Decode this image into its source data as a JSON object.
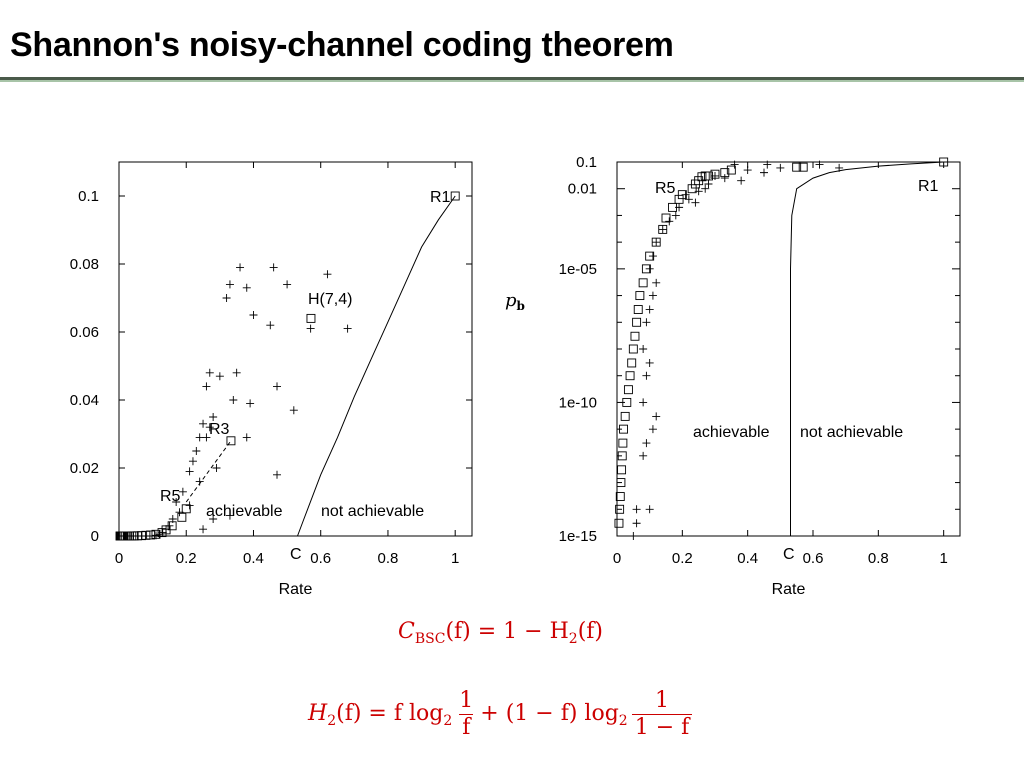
{
  "slide": {
    "title": "Shannon's noisy-channel coding theorem"
  },
  "equations": {
    "bsc_lhs_symbol": "C",
    "bsc_lhs_sub": "BSC",
    "bsc_rhs": "(f) = 1 − H",
    "bsc_rhs_sub": "2",
    "bsc_rhs_tail": "(f)",
    "h2_lhs": "H",
    "h2_lhs_sub": "2",
    "h2_mid1": "(f) = f log",
    "h2_mid1_sub": "2",
    "h2_frac1_num": "1",
    "h2_frac1_den": "f",
    "h2_mid2": "+ (1 − f) log",
    "h2_mid2_sub": "2",
    "h2_frac2_num": "1",
    "h2_frac2_den": "1 − f"
  },
  "colors": {
    "equation": "#cc0000",
    "plot_ink": "#000000",
    "title_rule_dark": "#4a5a4a",
    "title_rule_light": "#a8c4a8"
  },
  "chart_data": [
    {
      "type": "scatter",
      "title": "",
      "xlabel": "Rate",
      "ylabel": "",
      "xlim": [
        0,
        1.05
      ],
      "ylim": [
        0,
        0.11
      ],
      "xscale": "linear",
      "yscale": "linear",
      "x_ticks": [
        0,
        0.2,
        0.4,
        0.6,
        0.8,
        1
      ],
      "x_tick_labels": [
        "0",
        "0.2",
        "0.4",
        "0.6",
        "0.8",
        "1"
      ],
      "y_ticks": [
        0,
        0.02,
        0.04,
        0.06,
        0.08,
        0.1
      ],
      "y_tick_labels": [
        "0",
        "0.02",
        "0.04",
        "0.06",
        "0.08",
        "0.1"
      ],
      "grid": false,
      "series": [
        {
          "marker": "square",
          "x": [
            1.0,
            0.571,
            0.333,
            0.2,
            0.187,
            0.158,
            0.14,
            0.128,
            0.11,
            0.094,
            0.08,
            0.067,
            0.055,
            0.045,
            0.038,
            0.03,
            0.025,
            0.02,
            0.015,
            0.012,
            0.01,
            0.008,
            0.006,
            0.005,
            0.004,
            0.003
          ],
          "y": [
            0.1,
            0.064,
            0.028,
            0.008,
            0.0055,
            0.003,
            0.0018,
            0.001,
            0.0005,
            0.0003,
            0.0002,
            0.0001,
            5e-05,
            3e-05,
            2e-05,
            1e-05,
            0.0,
            0.0,
            0.0,
            0.0,
            0.0,
            0.0,
            0.0,
            0.0,
            0.0,
            0.0
          ]
        },
        {
          "marker": "plus",
          "x": [
            0.36,
            0.46,
            0.33,
            0.5,
            0.62,
            0.4,
            0.32,
            0.38,
            0.45,
            0.57,
            0.68,
            0.27,
            0.3,
            0.35,
            0.26,
            0.47,
            0.34,
            0.39,
            0.52,
            0.28,
            0.25,
            0.27,
            0.26,
            0.38,
            0.24,
            0.23,
            0.29,
            0.22,
            0.21,
            0.47,
            0.24,
            0.33,
            0.28,
            0.19,
            0.17,
            0.25,
            0.21,
            0.18,
            0.16,
            0.15,
            0.14,
            0.13,
            0.12,
            0.11
          ],
          "y": [
            0.079,
            0.079,
            0.074,
            0.074,
            0.077,
            0.065,
            0.07,
            0.073,
            0.062,
            0.061,
            0.061,
            0.048,
            0.047,
            0.048,
            0.044,
            0.044,
            0.04,
            0.039,
            0.037,
            0.035,
            0.033,
            0.032,
            0.029,
            0.029,
            0.029,
            0.025,
            0.02,
            0.022,
            0.019,
            0.018,
            0.016,
            0.006,
            0.005,
            0.013,
            0.01,
            0.002,
            0.009,
            0.007,
            0.005,
            0.003,
            0.002,
            0.001,
            0.0005,
            0.0002
          ]
        },
        {
          "marker": "line",
          "name_hint": "capacity boundary",
          "x": [
            0.531,
            0.55,
            0.6,
            0.65,
            0.7,
            0.75,
            0.8,
            0.85,
            0.9,
            0.95,
            1.0
          ],
          "y": [
            0.0,
            0.005,
            0.018,
            0.029,
            0.041,
            0.052,
            0.063,
            0.074,
            0.085,
            0.093,
            0.1
          ]
        }
      ],
      "annotations": [
        "R1",
        "H(7,4)",
        "R3",
        "R5",
        "achievable",
        "not achievable",
        "C"
      ]
    },
    {
      "type": "scatter",
      "title": "",
      "xlabel": "Rate",
      "ylabel": "p_b",
      "xlim": [
        0,
        1.05
      ],
      "ylim": [
        1e-15,
        0.1
      ],
      "xscale": "linear",
      "yscale": "log",
      "x_ticks": [
        0,
        0.2,
        0.4,
        0.6,
        0.8,
        1
      ],
      "x_tick_labels": [
        "0",
        "0.2",
        "0.4",
        "0.6",
        "0.8",
        "1"
      ],
      "y_tick_labels": [
        "0.1",
        "0.01",
        "1e-05",
        "1e-10",
        "1e-15"
      ],
      "y_tick_exponents": [
        -1,
        -2,
        -5,
        -10,
        -15
      ],
      "grid": false,
      "series": [
        {
          "marker": "square",
          "x": [
            1.0,
            0.57,
            0.55,
            0.35,
            0.33,
            0.3,
            0.28,
            0.27,
            0.26,
            0.25,
            0.24,
            0.23,
            0.2,
            0.19,
            0.17,
            0.15,
            0.14,
            0.12,
            0.1,
            0.09,
            0.08,
            0.07,
            0.065,
            0.06,
            0.055,
            0.05,
            0.045,
            0.04,
            0.035,
            0.03,
            0.025,
            0.02,
            0.018,
            0.016,
            0.014,
            0.012,
            0.01,
            0.008,
            0.006
          ],
          "y": [
            0.1,
            0.064,
            0.064,
            0.05,
            0.04,
            0.035,
            0.03,
            0.03,
            0.028,
            0.02,
            0.015,
            0.01,
            0.006,
            0.004,
            0.002,
            0.0008,
            0.0003,
            0.0001,
            3e-05,
            1e-05,
            3e-06,
            1e-06,
            3e-07,
            1e-07,
            3e-08,
            1e-08,
            3e-09,
            1e-09,
            3e-10,
            1e-10,
            3e-11,
            1e-11,
            3e-12,
            1e-12,
            3e-13,
            1e-13,
            3e-14,
            1e-14,
            3e-15
          ]
        },
        {
          "marker": "plus",
          "x": [
            0.36,
            0.46,
            0.5,
            0.62,
            0.68,
            0.4,
            0.45,
            0.3,
            0.33,
            0.38,
            0.28,
            0.27,
            0.25,
            0.21,
            0.22,
            0.24,
            0.19,
            0.18,
            0.16,
            0.14,
            0.12,
            0.11,
            0.1,
            0.12,
            0.11,
            0.1,
            0.09,
            0.08,
            0.1,
            0.09,
            0.08,
            0.12,
            0.11,
            0.09,
            0.08,
            0.06,
            0.1,
            0.06,
            0.05
          ],
          "y": [
            0.08,
            0.08,
            0.06,
            0.08,
            0.06,
            0.05,
            0.04,
            0.03,
            0.025,
            0.02,
            0.015,
            0.01,
            0.008,
            0.006,
            0.004,
            0.003,
            0.002,
            0.001,
            0.0006,
            0.0003,
            0.0001,
            3e-05,
            1e-05,
            3e-06,
            1e-06,
            3e-07,
            1e-07,
            1e-08,
            3e-09,
            1e-09,
            1e-10,
            3e-11,
            1e-11,
            3e-12,
            1e-12,
            1e-14,
            1e-14,
            3e-15,
            1e-15
          ]
        },
        {
          "marker": "line",
          "name_hint": "capacity boundary",
          "x": [
            0.531,
            0.531,
            0.535,
            0.55,
            0.6,
            0.65,
            0.7,
            0.8,
            0.9,
            1.0
          ],
          "y": [
            1e-15,
            1e-05,
            0.001,
            0.01,
            0.025,
            0.04,
            0.052,
            0.07,
            0.085,
            0.1
          ]
        }
      ],
      "annotations": [
        "R5",
        "R1",
        "achievable",
        "not achievable",
        "C"
      ]
    }
  ],
  "plot_labels": {
    "left": {
      "r1": "R1",
      "h74": "H(7,4)",
      "r3": "R3",
      "r5": "R5",
      "achievable": "achievable",
      "not_achievable": "not achievable",
      "c": "C",
      "xlabel": "Rate"
    },
    "right": {
      "r5": "R5",
      "r1": "R1",
      "achievable": "achievable",
      "not_achievable": "not achievable",
      "c": "C",
      "xlabel": "Rate"
    },
    "pb_symbol": "p",
    "pb_sub": "b"
  }
}
